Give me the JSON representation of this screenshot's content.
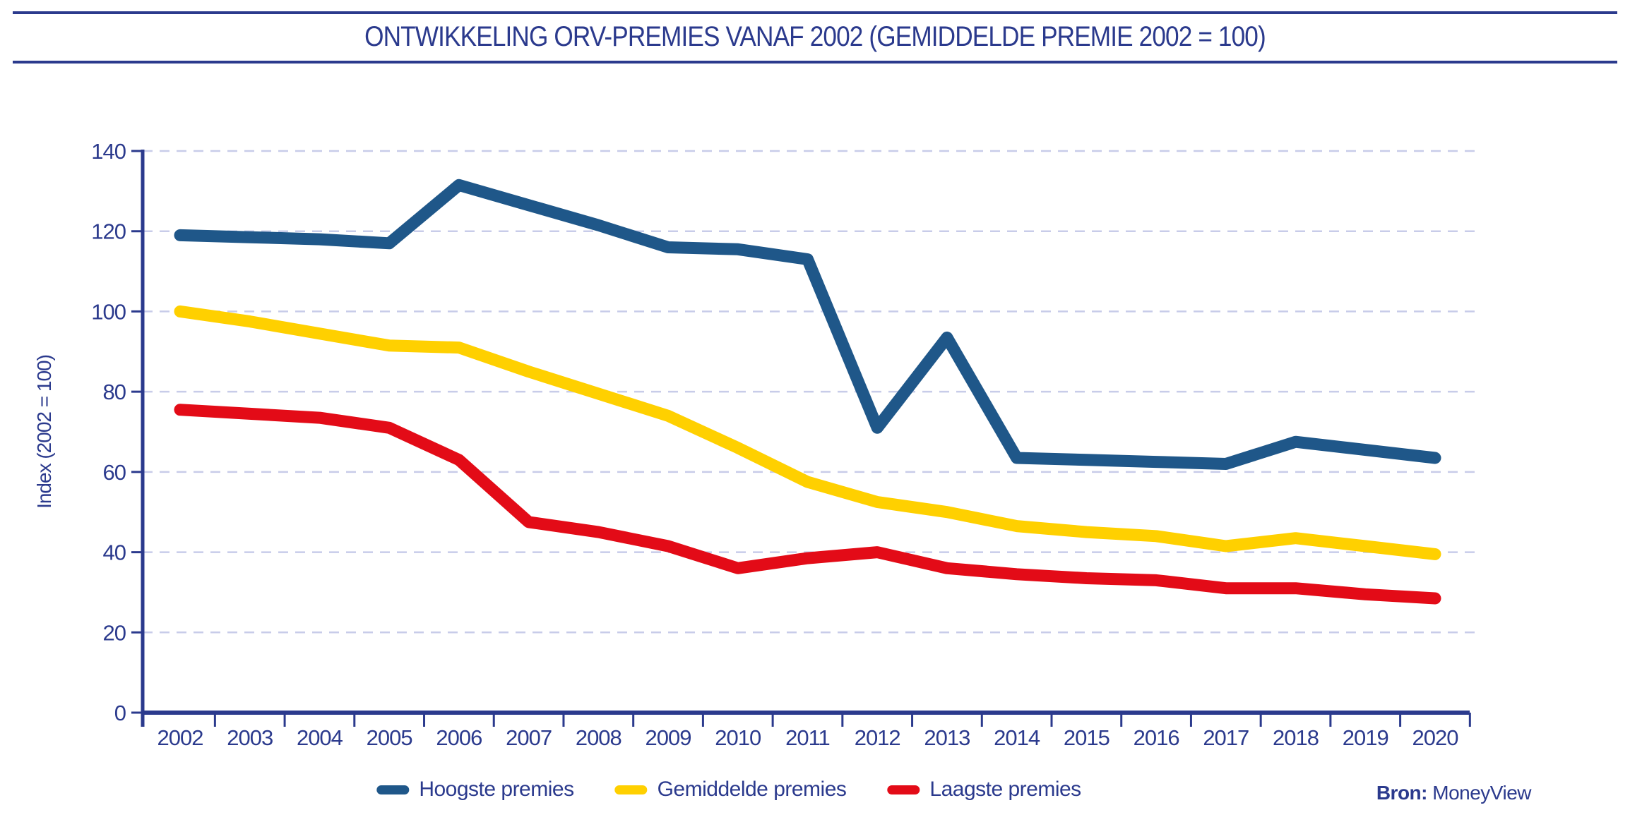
{
  "header": {
    "title": "ONTWIKKELING ORV-PREMIES VANAF 2002 (GEMIDDELDE PREMIE 2002 = 100)"
  },
  "chart_data": {
    "type": "line",
    "title": "ONTWIKKELING ORV-PREMIES VANAF 2002 (GEMIDDELDE PREMIE 2002 = 100)",
    "xlabel": "",
    "ylabel": "Index (2002 = 100)",
    "ylim": [
      0,
      140
    ],
    "yticks": [
      0,
      20,
      40,
      60,
      80,
      100,
      120,
      140
    ],
    "grid": "horizontal-dashed",
    "legend_position": "bottom-center",
    "categories": [
      "2002",
      "2003",
      "2004",
      "2005",
      "2006",
      "2007",
      "2008",
      "2009",
      "2010",
      "2011",
      "2012",
      "2013",
      "2014",
      "2015",
      "2016",
      "2017",
      "2018",
      "2019",
      "2020"
    ],
    "series": [
      {
        "name": "Hoogste premies",
        "color": "#1f5789",
        "values": [
          119,
          118.5,
          118,
          117,
          131.5,
          126.5,
          121.5,
          116,
          115.5,
          113,
          71,
          93.5,
          63.5,
          63,
          62.5,
          62,
          67.5,
          65.5,
          63.5
        ]
      },
      {
        "name": "Gemiddelde premies",
        "color": "#ffd000",
        "values": [
          100,
          97.5,
          94.5,
          91.5,
          91,
          85,
          79.5,
          74,
          66,
          57.5,
          52.5,
          50,
          46.5,
          45,
          44,
          41.5,
          43.5,
          41.5,
          39.5
        ]
      },
      {
        "name": "Laagste premies",
        "color": "#e30b17",
        "values": [
          75.5,
          74.5,
          73.5,
          71,
          63,
          47.5,
          45,
          41.5,
          36,
          38.5,
          40,
          36,
          34.5,
          33.5,
          33,
          31,
          31,
          29.5,
          28.5
        ]
      }
    ],
    "colors": {
      "axis": "#2b3a8d",
      "grid": "#c8cce9"
    }
  },
  "source": {
    "label": "Bron:",
    "value": "MoneyView"
  }
}
